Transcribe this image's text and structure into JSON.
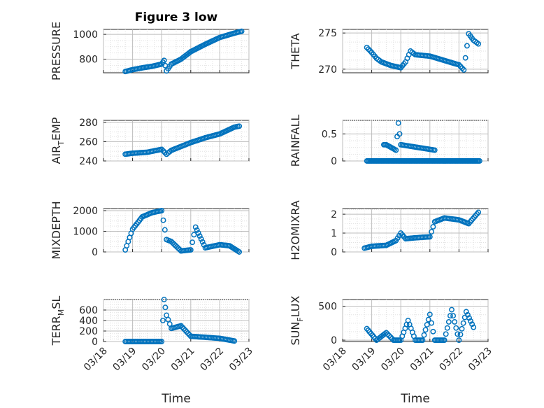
{
  "figure": {
    "title": "Figure 3 low",
    "marker_color": "#0072BD",
    "grid": "on (dotted)",
    "xlabel": "Time"
  },
  "chart_data": [
    {
      "type": "scatter",
      "name": "PRESSURE",
      "title": "Figure 3 low",
      "ylabel_main": "PRESSURE",
      "ylabel_sub": "",
      "ylabel_tail": "",
      "xlim": [
        "03/18",
        "03/23"
      ],
      "ylim": [
        690,
        1040
      ],
      "yticks": [
        800,
        1000
      ],
      "xticks": [
        "03/18",
        "03/19",
        "03/20",
        "03/21",
        "03/22",
        "03/23"
      ],
      "show_xticks": false,
      "xlabel": "",
      "x": [
        "03/18 18:00",
        "03/19 00:00",
        "03/19 08:00",
        "03/19 16:00",
        "03/20 00:00",
        "03/20 02:00",
        "03/20 04:00",
        "03/20 08:00",
        "03/20 16:00",
        "03/21 00:00",
        "03/21 12:00",
        "03/22 00:00",
        "03/22 12:00",
        "03/22 18:00"
      ],
      "y": [
        700,
        715,
        730,
        742,
        760,
        790,
        705,
        760,
        800,
        860,
        920,
        975,
        1010,
        1025
      ]
    },
    {
      "type": "scatter",
      "name": "THETA",
      "title": "",
      "ylabel_main": "THETA",
      "ylabel_sub": "",
      "ylabel_tail": "",
      "xlim": [
        "03/18",
        "03/23"
      ],
      "ylim": [
        269.5,
        275.5
      ],
      "yticks": [
        270,
        275
      ],
      "xticks": [
        "03/18",
        "03/19",
        "03/20",
        "03/21",
        "03/22",
        "03/23"
      ],
      "show_xticks": false,
      "xlabel": "",
      "x": [
        "03/18 20:00",
        "03/19 00:00",
        "03/19 04:00",
        "03/19 08:00",
        "03/19 16:00",
        "03/20 00:00",
        "03/20 04:00",
        "03/20 08:00",
        "03/20 12:00",
        "03/21 00:00",
        "03/21 12:00",
        "03/22 00:00",
        "03/22 04:00",
        "03/22 08:00",
        "03/22 12:00",
        "03/22 16:00"
      ],
      "y": [
        273,
        272.3,
        271.5,
        271,
        270.5,
        270.2,
        271,
        272.5,
        272,
        271.8,
        271.2,
        270.6,
        269.9,
        274.9,
        274,
        273.5
      ]
    },
    {
      "type": "scatter",
      "name": "AIR_TEMP",
      "title": "",
      "ylabel_main": "AIR",
      "ylabel_sub": "T",
      "ylabel_tail": "EMP",
      "xlim": [
        "03/18",
        "03/23"
      ],
      "ylim": [
        240,
        282
      ],
      "yticks": [
        240,
        260,
        280
      ],
      "xticks": [
        "03/18",
        "03/19",
        "03/20",
        "03/21",
        "03/22",
        "03/23"
      ],
      "show_xticks": false,
      "xlabel": "",
      "x": [
        "03/18 18:00",
        "03/19 00:00",
        "03/19 12:00",
        "03/20 00:00",
        "03/20 04:00",
        "03/20 08:00",
        "03/20 16:00",
        "03/21 00:00",
        "03/21 12:00",
        "03/22 00:00",
        "03/22 12:00",
        "03/22 16:00"
      ],
      "y": [
        247,
        248,
        249,
        252,
        247,
        251,
        255,
        259,
        264,
        268,
        275,
        276
      ]
    },
    {
      "type": "scatter",
      "name": "RAINFALL",
      "title": "",
      "ylabel_main": "RAINFALL",
      "ylabel_sub": "",
      "ylabel_tail": "",
      "xlim": [
        "03/18",
        "03/23"
      ],
      "ylim": [
        0,
        0.75
      ],
      "yticks": [
        0,
        0.5
      ],
      "xticks": [
        "03/18",
        "03/19",
        "03/20",
        "03/21",
        "03/22",
        "03/23"
      ],
      "show_xticks": false,
      "xlabel": "",
      "x": [
        "03/19 10:00",
        "03/19 12:00",
        "03/19 20:00",
        "03/19 22:00",
        "03/20 00:00",
        "03/21 04:00"
      ],
      "y": [
        0.3,
        0.3,
        0.2,
        0.7,
        0.3,
        0.2
      ]
    },
    {
      "type": "scatter",
      "name": "MIXDEPTH",
      "title": "",
      "ylabel_main": "MIXDEPTH",
      "ylabel_sub": "",
      "ylabel_tail": "",
      "xlim": [
        "03/18",
        "03/23"
      ],
      "ylim": [
        0,
        2100
      ],
      "yticks": [
        0,
        1000,
        2000
      ],
      "xticks": [
        "03/18",
        "03/19",
        "03/20",
        "03/21",
        "03/22",
        "03/23"
      ],
      "show_xticks": false,
      "xlabel": "",
      "x": [
        "03/18 18:00",
        "03/19 00:00",
        "03/19 08:00",
        "03/19 16:00",
        "03/20 00:00",
        "03/20 04:00",
        "03/20 08:00",
        "03/20 16:00",
        "03/21 00:00",
        "03/21 04:00",
        "03/21 12:00",
        "03/22 00:00",
        "03/22 08:00",
        "03/22 16:00"
      ],
      "y": [
        100,
        1100,
        1700,
        1900,
        2000,
        600,
        500,
        50,
        100,
        1200,
        200,
        350,
        300,
        0
      ]
    },
    {
      "type": "scatter",
      "name": "H2OMIXRA",
      "title": "",
      "ylabel_main": "H2OMIXRA",
      "ylabel_sub": "",
      "ylabel_tail": "",
      "xlim": [
        "03/18",
        "03/23"
      ],
      "ylim": [
        0,
        2.3
      ],
      "yticks": [
        0,
        1,
        2
      ],
      "xticks": [
        "03/18",
        "03/19",
        "03/20",
        "03/21",
        "03/22",
        "03/23"
      ],
      "show_xticks": false,
      "xlabel": "",
      "x": [
        "03/18 18:00",
        "03/19 00:00",
        "03/19 12:00",
        "03/19 20:00",
        "03/20 00:00",
        "03/20 04:00",
        "03/20 12:00",
        "03/21 00:00",
        "03/21 04:00",
        "03/21 12:00",
        "03/22 00:00",
        "03/22 08:00",
        "03/22 16:00"
      ],
      "y": [
        0.2,
        0.3,
        0.35,
        0.6,
        1.0,
        0.7,
        0.75,
        0.8,
        1.6,
        1.8,
        1.7,
        1.5,
        2.1
      ]
    },
    {
      "type": "scatter",
      "name": "TERR_MSL",
      "title": "",
      "ylabel_main": "TERR",
      "ylabel_sub": "M",
      "ylabel_tail": "SL",
      "xlim": [
        "03/18",
        "03/23"
      ],
      "ylim": [
        0,
        800
      ],
      "yticks": [
        0,
        200,
        400,
        600
      ],
      "xticks": [
        "03/18",
        "03/19",
        "03/20",
        "03/21",
        "03/22",
        "03/23"
      ],
      "show_xticks": true,
      "xlabel": "Time",
      "x": [
        "03/18 18:00",
        "03/19 12:00",
        "03/20 00:00",
        "03/20 02:00",
        "03/20 04:00",
        "03/20 08:00",
        "03/20 16:00",
        "03/21 00:00",
        "03/21 12:00",
        "03/22 00:00",
        "03/22 12:00"
      ],
      "y": [
        0,
        0,
        0,
        800,
        500,
        250,
        300,
        100,
        80,
        60,
        10
      ]
    },
    {
      "type": "scatter",
      "name": "SUN_FLUX",
      "title": "",
      "ylabel_main": "SUN",
      "ylabel_sub": "F",
      "ylabel_tail": "LUX",
      "xlim": [
        "03/18",
        "03/23"
      ],
      "ylim": [
        -20,
        600
      ],
      "yticks": [
        0,
        500
      ],
      "xticks": [
        "03/18",
        "03/19",
        "03/20",
        "03/21",
        "03/22",
        "03/23"
      ],
      "show_xticks": true,
      "xlabel": "Time",
      "x": [
        "03/18 20:00",
        "03/19 04:00",
        "03/19 12:00",
        "03/19 18:00",
        "03/20 00:00",
        "03/20 06:00",
        "03/20 12:00",
        "03/20 18:00",
        "03/21 00:00",
        "03/21 04:00",
        "03/21 12:00",
        "03/21 18:00",
        "03/22 00:00",
        "03/22 06:00",
        "03/22 12:00"
      ],
      "y": [
        170,
        0,
        110,
        0,
        0,
        290,
        0,
        0,
        380,
        0,
        0,
        450,
        0,
        420,
        190
      ]
    }
  ]
}
